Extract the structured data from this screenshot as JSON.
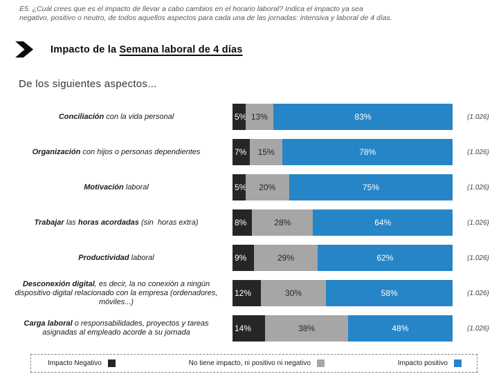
{
  "survey_note": "E5. ¿Cuál crees que es el impacto de llevar a cabo cambios en el horario laboral? Indica el impacto ya sea negativo, positivo o neutro, de todos aquellos aspectos para cada una de las jornadas: intensiva y laboral de 4 días.",
  "header": {
    "title_prefix": "Impacto de la ",
    "title_underlined": "Semana laboral de 4 días"
  },
  "subtitle": "De los siguientes aspectos...",
  "chart_data": {
    "type": "bar",
    "orientation": "horizontal",
    "stacked": true,
    "unit": "%",
    "legend_position": "bottom",
    "series": [
      "Impacto Negativo",
      "No tiene impacto, ni positivo ni negativo",
      "Impacto positivo"
    ],
    "colors": {
      "negative": "#262626",
      "neutral": "#A6A6A6",
      "positive": "#2585C7"
    },
    "rows": [
      {
        "label": "Conciliación con la vida personal",
        "label_parts": [
          {
            "text": "Conciliación",
            "bold": true
          },
          {
            "text": " con la vida personal",
            "bold": false
          }
        ],
        "values": [
          5,
          13,
          83
        ],
        "n": "(1.026)"
      },
      {
        "label": "Organización con hijos o personas dependientes",
        "label_parts": [
          {
            "text": "Organización",
            "bold": true
          },
          {
            "text": " con hijos o personas dependientes",
            "bold": false
          }
        ],
        "values": [
          7,
          15,
          78
        ],
        "n": "(1.026)"
      },
      {
        "label": "Motivación laboral",
        "label_parts": [
          {
            "text": "Motivación",
            "bold": true
          },
          {
            "text": " laboral",
            "bold": false
          }
        ],
        "values": [
          5,
          20,
          75
        ],
        "n": "(1.026)"
      },
      {
        "label": "Trabajar las horas acordadas (sin horas extra)",
        "label_parts": [
          {
            "text": "Trabajar",
            "bold": true
          },
          {
            "text": " las ",
            "bold": false
          },
          {
            "text": "horas acordadas",
            "bold": true
          },
          {
            "text": " (sin  horas extra)",
            "bold": false
          }
        ],
        "values": [
          8,
          28,
          64
        ],
        "n": "(1.026)"
      },
      {
        "label": "Productividad laboral",
        "label_parts": [
          {
            "text": "Productividad",
            "bold": true
          },
          {
            "text": " laboral",
            "bold": false
          }
        ],
        "values": [
          9,
          29,
          62
        ],
        "n": "(1.026)"
      },
      {
        "label": "Desconexión digital, es decir, la no conexión a ningún dispositivo digital relacionado con la empresa (ordenadores, móviles...)",
        "label_parts": [
          {
            "text": "Desconexión digital",
            "bold": true
          },
          {
            "text": ", es decir, la no conexión a ningún dispositivo digital relacionado con la empresa (ordenadores, móviles...)",
            "bold": false
          }
        ],
        "values": [
          12,
          30,
          58
        ],
        "n": "(1.026)"
      },
      {
        "label": "Carga laboral o responsabilidades, proyectos y tareas asignadas al empleado acorde a su jornada",
        "label_parts": [
          {
            "text": "Carga laboral",
            "bold": true
          },
          {
            "text": " o responsabilidades, proyectos y tareas asignadas al empleado acorde a su jornada",
            "bold": false
          }
        ],
        "values": [
          14,
          38,
          48
        ],
        "n": "(1.026)"
      }
    ]
  },
  "legend": {
    "items": [
      {
        "label": "Impacto Negativo",
        "key": "negative"
      },
      {
        "label": "No tiene impacto, ni positivo ni negativo",
        "key": "neutral"
      },
      {
        "label": "Impacto positivo",
        "key": "positive"
      }
    ]
  }
}
